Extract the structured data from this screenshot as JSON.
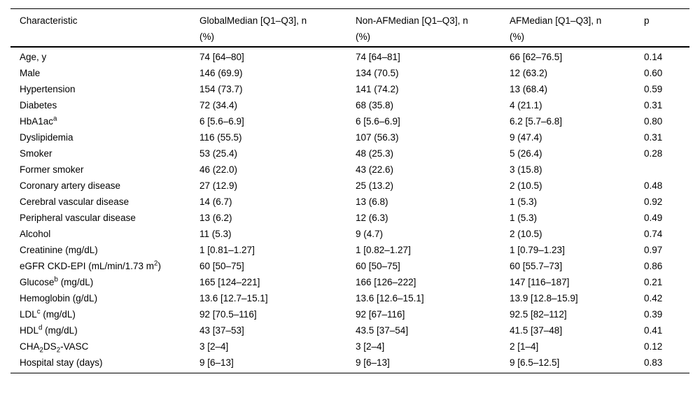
{
  "table": {
    "columns": [
      "Characteristic",
      "GlobalMedian [Q1–Q3], n (%)",
      "Non-AFMedian [Q1–Q3], n (%)",
      "AFMedian [Q1–Q3], n (%)",
      "p"
    ],
    "rows": [
      {
        "cells": [
          "Age, y",
          "74 [64–80]",
          "74 [64–81]",
          "66 [62–76.5]",
          "0.14"
        ]
      },
      {
        "cells": [
          "Male",
          "146 (69.9)",
          "134 (70.5)",
          "12 (63.2)",
          "0.60"
        ]
      },
      {
        "cells": [
          "Hypertension",
          "154 (73.7)",
          "141 (74.2)",
          "13 (68.4)",
          "0.59"
        ]
      },
      {
        "cells": [
          "Diabetes",
          "72 (34.4)",
          "68 (35.8)",
          "4 (21.1)",
          "0.31"
        ]
      },
      {
        "cells": [
          [
            {
              "t": "HbA1ac"
            },
            {
              "t": "a",
              "s": "sup"
            }
          ],
          "6 [5.6–6.9]",
          "6 [5.6–6.9]",
          "6.2 [5.7–6.8]",
          "0.80"
        ]
      },
      {
        "cells": [
          "Dyslipidemia",
          "116 (55.5)",
          "107 (56.3)",
          "9 (47.4)",
          "0.31"
        ]
      },
      {
        "cells": [
          "Smoker",
          "53 (25.4)",
          "48 (25.3)",
          "5 (26.4)",
          "0.28"
        ]
      },
      {
        "cells": [
          "Former smoker",
          "46 (22.0)",
          "43 (22.6)",
          "3 (15.8)",
          ""
        ]
      },
      {
        "cells": [
          "Coronary artery disease",
          "27 (12.9)",
          "25 (13.2)",
          "2 (10.5)",
          "0.48"
        ]
      },
      {
        "cells": [
          "Cerebral vascular disease",
          "14 (6.7)",
          "13 (6.8)",
          "1 (5.3)",
          "0.92"
        ]
      },
      {
        "cells": [
          "Peripheral vascular disease",
          "13 (6.2)",
          "12 (6.3)",
          "1 (5.3)",
          "0.49"
        ]
      },
      {
        "cells": [
          "Alcohol",
          "11 (5.3)",
          "9 (4.7)",
          "2 (10.5)",
          "0.74"
        ]
      },
      {
        "cells": [
          "Creatinine (mg/dL)",
          "1 [0.81–1.27]",
          "1 [0.82–1.27]",
          "1 [0.79–1.23]",
          "0.97"
        ]
      },
      {
        "cells": [
          [
            {
              "t": "eGFR CKD-EPI (mL/min/1.73 m"
            },
            {
              "t": "2",
              "s": "sup"
            },
            {
              "t": ")"
            }
          ],
          "60 [50–75]",
          "60 [50–75]",
          "60 [55.7–73]",
          "0.86"
        ]
      },
      {
        "cells": [
          [
            {
              "t": "Glucose"
            },
            {
              "t": "b",
              "s": "sup"
            },
            {
              "t": " (mg/dL)"
            }
          ],
          "165 [124–221]",
          "166 [126–222]",
          "147 [116–187]",
          "0.21"
        ]
      },
      {
        "cells": [
          "Hemoglobin (g/dL)",
          "13.6 [12.7–15.1]",
          "13.6 [12.6–15.1]",
          "13.9 [12.8–15.9]",
          "0.42"
        ]
      },
      {
        "cells": [
          [
            {
              "t": "LDL"
            },
            {
              "t": "c",
              "s": "sup"
            },
            {
              "t": " (mg/dL)"
            }
          ],
          "92 [70.5–116]",
          "92 [67–116]",
          "92.5 [82–112]",
          "0.39"
        ]
      },
      {
        "cells": [
          [
            {
              "t": "HDL"
            },
            {
              "t": "d",
              "s": "sup"
            },
            {
              "t": " (mg/dL)"
            }
          ],
          "43 [37–53]",
          "43.5 [37–54]",
          "41.5 [37–48]",
          "0.41"
        ]
      },
      {
        "cells": [
          [
            {
              "t": "CHA"
            },
            {
              "t": "2",
              "s": "sub"
            },
            {
              "t": "DS"
            },
            {
              "t": "2",
              "s": "sub"
            },
            {
              "t": "-VASC"
            }
          ],
          "3 [2–4]",
          "3 [2–4]",
          "2 [1–4]",
          "0.12"
        ]
      },
      {
        "cells": [
          "Hospital stay (days)",
          "9 [6–13]",
          "9 [6–13]",
          "9 [6.5–12.5]",
          "0.83"
        ]
      }
    ]
  }
}
